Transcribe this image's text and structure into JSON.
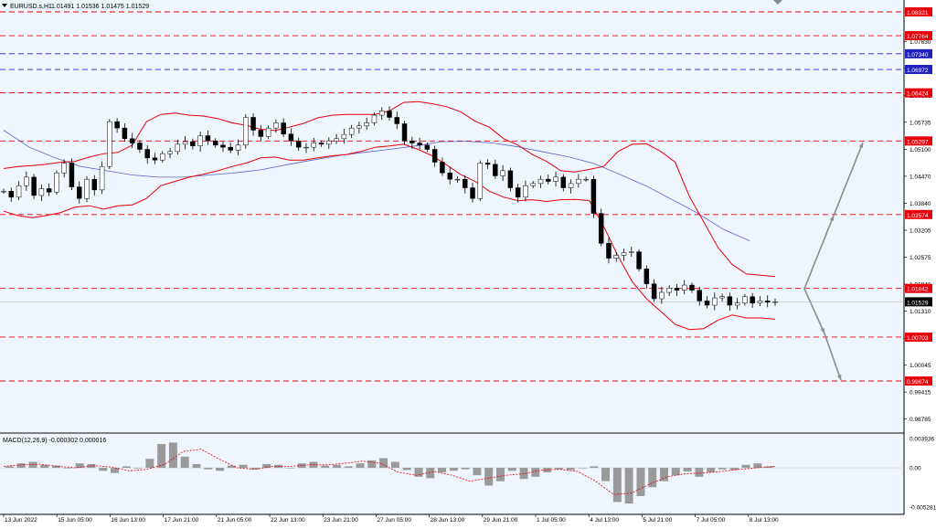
{
  "header": {
    "symbol": "EURUSD.s,H1",
    "ohlc": "1.01491 1.01536 1.01475 1.01529"
  },
  "macd_label": "MACD(12,26,9) -0.000302 0.000016",
  "colors": {
    "background": "#eef5fc",
    "candles": "#000000",
    "bollinger": "#e8000b",
    "moving_average": "#5b63d6",
    "level_red": "#e8000b",
    "level_blue": "#2020c0",
    "arrow": "#8c8c8c",
    "current_price_tag": "#000000"
  },
  "chart_data": [
    {
      "type": "line",
      "title": "EURUSD.s,H1",
      "subtitle": "1.01491 1.01536 1.01475 1.01529",
      "x_ticks": [
        "13 Jun 2022",
        "15 Jun 05:00",
        "16 Jun 13:00",
        "17 Jun 21:00",
        "21 Jun 05:00",
        "22 Jun 13:00",
        "23 Jun 21:00",
        "27 Jun 05:00",
        "28 Jun 13:00",
        "29 Jun 21:00",
        "1 Jul 05:00",
        "4 Jul 13:00",
        "5 Jul 21:00",
        "7 Jul 05:00",
        "8 Jul 13:00"
      ],
      "y_ticks": [
        "1.07630",
        "1.07000",
        "1.06365",
        "1.05735",
        "1.05100",
        "1.04470",
        "1.03840",
        "1.03205",
        "1.02575",
        "1.01940",
        "1.01310",
        "1.00675",
        "1.00045",
        "0.99415",
        "0.98785"
      ],
      "ylim": [
        0.9847,
        1.0853
      ],
      "levels": [
        {
          "value": 1.08321,
          "label": "1.08321",
          "color": "red"
        },
        {
          "value": 1.07764,
          "label": "1.07764",
          "color": "red"
        },
        {
          "value": 1.0734,
          "label": "1.07340",
          "color": "blue"
        },
        {
          "value": 1.06972,
          "label": "1.06972",
          "color": "blue"
        },
        {
          "value": 1.06424,
          "label": "1.06424",
          "color": "red"
        },
        {
          "value": 1.05297,
          "label": "1.05297",
          "color": "red"
        },
        {
          "value": 1.03574,
          "label": "1.03574",
          "color": "red"
        },
        {
          "value": 1.01842,
          "label": "1.01842",
          "color": "red"
        },
        {
          "value": 1.00703,
          "label": "1.00703",
          "color": "red"
        },
        {
          "value": 0.99674,
          "label": "0.99674",
          "color": "red"
        }
      ],
      "current_price": {
        "value": 1.01529,
        "label": "1.01529"
      },
      "series": [
        {
          "kind": "price_close",
          "values": [
            1.0412,
            1.0398,
            1.0425,
            1.0445,
            1.0402,
            1.0418,
            1.041,
            1.0455,
            1.0478,
            1.0422,
            1.0395,
            1.044,
            1.0415,
            1.047,
            1.0575,
            1.056,
            1.0535,
            1.0525,
            1.051,
            1.049,
            1.0485,
            1.05,
            1.0505,
            1.0522,
            1.0528,
            1.0518,
            1.0542,
            1.053,
            1.052,
            1.0515,
            1.0508,
            1.052,
            1.0585,
            1.0555,
            1.054,
            1.056,
            1.0572,
            1.0546,
            1.053,
            1.0515,
            1.0515,
            1.0525,
            1.0522,
            1.053,
            1.0535,
            1.0545,
            1.056,
            1.0565,
            1.0572,
            1.059,
            1.06,
            1.0585,
            1.057,
            1.053,
            1.0525,
            1.052,
            1.051,
            1.048,
            1.0455,
            1.044,
            1.044,
            1.042,
            1.0395,
            1.0478,
            1.0475,
            1.0448,
            1.046,
            1.042,
            1.0398,
            1.0425,
            1.043,
            1.044,
            1.0435,
            1.0445,
            1.042,
            1.043,
            1.044,
            1.044,
            1.036,
            1.029,
            1.0255,
            1.0262,
            1.0268,
            1.027,
            1.023,
            1.0195,
            1.016,
            1.0175,
            1.0185,
            1.018,
            1.0192,
            1.018,
            1.0155,
            1.0145,
            1.0162,
            1.0165,
            1.0145,
            1.015,
            1.0165,
            1.015,
            1.0155,
            1.0152,
            1.0153
          ]
        },
        {
          "kind": "bollinger_upper",
          "values": [
            1.0465,
            1.047,
            1.0472,
            1.0475,
            1.048,
            1.0482,
            1.0492,
            1.05,
            1.0503,
            1.052,
            1.0575,
            1.0592,
            1.0595,
            1.059,
            1.0588,
            1.0582,
            1.0572,
            1.0566,
            1.0557,
            1.0554,
            1.0562,
            1.0571,
            1.0584,
            1.059,
            1.0592,
            1.0592,
            1.0592,
            1.06,
            1.062,
            1.0622,
            1.0617,
            1.061,
            1.0598,
            1.0576,
            1.0562,
            1.0535,
            1.052,
            1.0498,
            1.0482,
            1.046,
            1.0457,
            1.0463,
            1.047,
            1.0505,
            1.0522,
            1.0523,
            1.0505,
            1.048,
            1.04,
            1.034,
            1.028,
            1.024,
            1.0218,
            1.0215,
            1.0212
          ]
        },
        {
          "kind": "bollinger_lower",
          "values": [
            1.0365,
            1.0355,
            1.035,
            1.0355,
            1.0362,
            1.0375,
            1.0378,
            1.037,
            1.0378,
            1.038,
            1.0395,
            1.0425,
            1.0435,
            1.0445,
            1.0452,
            1.046,
            1.047,
            1.0478,
            1.049,
            1.0492,
            1.0485,
            1.0485,
            1.049,
            1.0495,
            1.0498,
            1.0505,
            1.0515,
            1.0518,
            1.0522,
            1.051,
            1.0495,
            1.0474,
            1.0451,
            1.0435,
            1.0412,
            1.0398,
            1.039,
            1.0392,
            1.0388,
            1.0392,
            1.0393,
            1.039,
            1.033,
            1.026,
            1.02,
            1.016,
            1.013,
            1.01,
            1.0088,
            1.009,
            1.011,
            1.0122,
            1.0115,
            1.0115,
            1.0112
          ]
        },
        {
          "kind": "moving_average",
          "values": [
            1.0555,
            1.0515,
            1.049,
            1.047,
            1.046,
            1.045,
            1.0445,
            1.0445,
            1.045,
            1.0455,
            1.0462,
            1.0474,
            1.0485,
            1.0495,
            1.0503,
            1.051,
            1.0518,
            1.0528,
            1.0529,
            1.0525,
            1.0516,
            1.0504,
            1.0492,
            1.0476,
            1.045,
            1.0424,
            1.0392,
            1.036,
            1.0322,
            1.0296
          ]
        }
      ]
    },
    {
      "type": "bar",
      "title": "MACD(12,26,9) -0.000302 0.000016",
      "y_ticks": [
        "0.003936",
        "0.00",
        "-0.005281"
      ],
      "ylim": [
        -0.005281,
        0.003936
      ],
      "series": [
        {
          "kind": "macd_histogram",
          "values": [
            0.0002,
            0.0006,
            0.0008,
            0.0004,
            0.0003,
            0.0,
            0.0006,
            0.0005,
            -0.0004,
            -0.0007,
            0.0002,
            0.0,
            0.0012,
            0.0032,
            0.0034,
            0.0015,
            0.0005,
            -0.0002,
            -0.0004,
            0.0003,
            0.0004,
            -0.0002,
            0.0005,
            0.0004,
            0.0,
            0.0006,
            0.0008,
            0.0003,
            0.0004,
            0.0002,
            0.0006,
            0.001,
            0.0013,
            0.0008,
            -0.0003,
            -0.0012,
            -0.0014,
            -0.0006,
            -0.0004,
            -0.0002,
            -0.001,
            -0.0024,
            -0.0018,
            -0.0004,
            -0.0015,
            -0.0012,
            -0.0006,
            -0.0002,
            -0.0003,
            0.0,
            0.0002,
            -0.0018,
            -0.0046,
            -0.0048,
            -0.0038,
            -0.0026,
            -0.0018,
            -0.001,
            -0.0005,
            -0.0012,
            -0.0006,
            -0.0002,
            -0.0003,
            0.0004,
            0.0006,
            0.0002
          ]
        },
        {
          "kind": "macd_signal",
          "values": [
            0.0002,
            0.0004,
            0.0005,
            0.0002,
            0.0,
            0.0003,
            0.0001,
            -0.0004,
            -0.0002,
            0.0005,
            0.0022,
            0.0025,
            0.0012,
            0.0,
            -0.0002,
            0.0002,
            0.0002,
            0.0004,
            0.0004,
            0.0006,
            0.0009,
            0.0006,
            -0.0006,
            -0.001,
            -0.0005,
            -0.001,
            -0.0018,
            -0.0014,
            -0.001,
            -0.0008,
            -0.0003,
            -0.0002,
            -0.0005,
            -0.0018,
            -0.0036,
            -0.0034,
            -0.0022,
            -0.0012,
            -0.0008,
            -0.0007,
            -0.0005,
            -0.0002,
            0.0,
            0.0002
          ]
        }
      ]
    }
  ]
}
